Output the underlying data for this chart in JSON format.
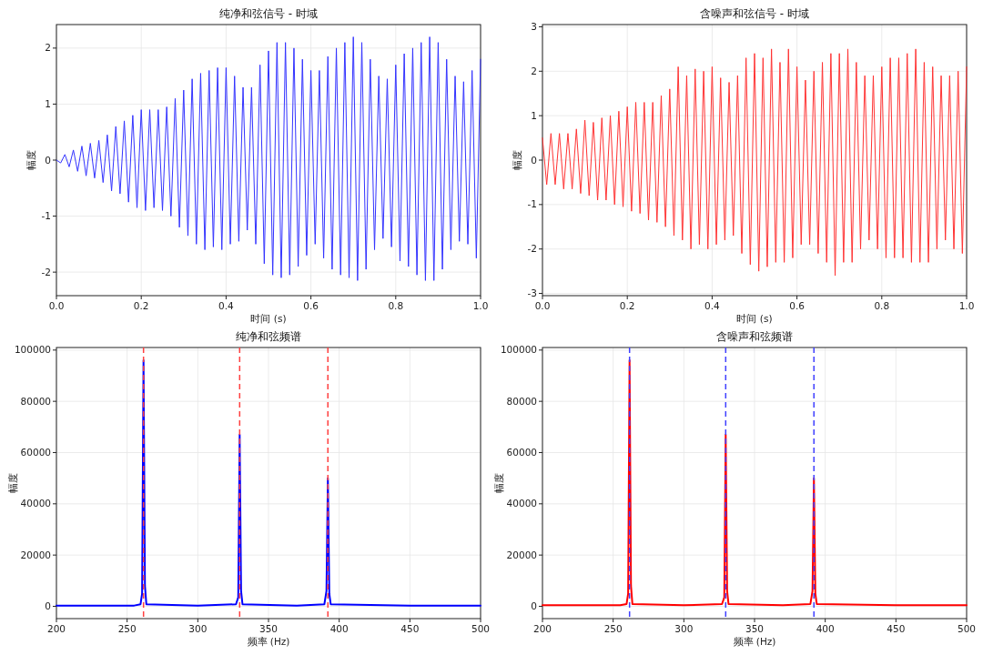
{
  "chart_data": [
    {
      "type": "line",
      "title": "纯净和弦信号 - 时域",
      "xlabel": "时间 (s)",
      "ylabel": "幅度",
      "xlim": [
        0,
        1
      ],
      "xticks": [
        {
          "value": 0,
          "label": "0.0"
        },
        {
          "value": 0.2,
          "label": "0.2"
        },
        {
          "value": 0.4,
          "label": "0.4"
        },
        {
          "value": 0.6,
          "label": "0.6"
        },
        {
          "value": 0.8,
          "label": "0.8"
        },
        {
          "value": 1,
          "label": "1.0"
        }
      ],
      "ylim": [
        -2.42,
        2.42
      ],
      "yticks": [
        -2,
        -1,
        0,
        1,
        2
      ],
      "grid": true,
      "series": [
        {
          "color": "#3333ff",
          "x": [
            0,
            0.01,
            0.02,
            0.03,
            0.04,
            0.05,
            0.06,
            0.07,
            0.08,
            0.09,
            0.1,
            0.11,
            0.12,
            0.13,
            0.14,
            0.15,
            0.16,
            0.17,
            0.18,
            0.19,
            0.2,
            0.21,
            0.22,
            0.23,
            0.24,
            0.25,
            0.26,
            0.27,
            0.28,
            0.29,
            0.3,
            0.31,
            0.32,
            0.33,
            0.34,
            0.35,
            0.36,
            0.37,
            0.38,
            0.39,
            0.4,
            0.41,
            0.42,
            0.43,
            0.44,
            0.45,
            0.46,
            0.47,
            0.48,
            0.49,
            0.5,
            0.51,
            0.52,
            0.53,
            0.54,
            0.55,
            0.56,
            0.57,
            0.58,
            0.59,
            0.6,
            0.61,
            0.62,
            0.63,
            0.64,
            0.65,
            0.66,
            0.67,
            0.68,
            0.69,
            0.7,
            0.71,
            0.72,
            0.73,
            0.74,
            0.75,
            0.76,
            0.77,
            0.78,
            0.79,
            0.8,
            0.81,
            0.82,
            0.83,
            0.84,
            0.85,
            0.86,
            0.87,
            0.88,
            0.89,
            0.9,
            0.91,
            0.92,
            0.93,
            0.94,
            0.95,
            0.96,
            0.97,
            0.98,
            0.99,
            1
          ],
          "values": [
            0,
            -0.05,
            0.1,
            -0.12,
            0.18,
            -0.2,
            0.25,
            -0.28,
            0.3,
            -0.32,
            0.35,
            -0.4,
            0.45,
            -0.55,
            0.6,
            -0.6,
            0.7,
            -0.75,
            0.8,
            -0.85,
            0.9,
            -0.9,
            0.9,
            -0.85,
            0.9,
            -0.9,
            0.95,
            -1.0,
            1.1,
            -1.2,
            1.25,
            -1.35,
            1.45,
            -1.5,
            1.55,
            -1.6,
            1.6,
            -1.55,
            1.65,
            -1.6,
            1.65,
            -1.5,
            1.5,
            -1.45,
            1.3,
            -1.25,
            1.3,
            -1.5,
            1.7,
            -1.85,
            1.95,
            -2.05,
            2.1,
            -2.1,
            2.1,
            -2.05,
            2.0,
            -1.9,
            1.8,
            -1.7,
            1.6,
            -1.5,
            1.6,
            -1.75,
            1.85,
            -1.95,
            2.0,
            -2.05,
            2.1,
            -2.1,
            2.2,
            -2.15,
            2.1,
            -1.95,
            1.8,
            -1.6,
            1.5,
            -1.4,
            1.45,
            -1.55,
            1.7,
            -1.8,
            1.9,
            -1.9,
            2.0,
            -2.05,
            2.1,
            -2.15,
            2.2,
            -2.15,
            2.1,
            -1.95,
            1.8,
            -1.6,
            1.5,
            -1.45,
            1.4,
            -1.5,
            1.6,
            -1.75,
            1.8
          ]
        }
      ]
    },
    {
      "type": "line",
      "title": "含噪声和弦信号 - 时域",
      "xlabel": "时间 (s)",
      "ylabel": "幅度",
      "xlim": [
        0,
        1
      ],
      "xticks": [
        {
          "value": 0,
          "label": "0.0"
        },
        {
          "value": 0.2,
          "label": "0.2"
        },
        {
          "value": 0.4,
          "label": "0.4"
        },
        {
          "value": 0.6,
          "label": "0.6"
        },
        {
          "value": 0.8,
          "label": "0.8"
        },
        {
          "value": 1,
          "label": "1.0"
        }
      ],
      "ylim": [
        -3.05,
        3.05
      ],
      "yticks": [
        -3,
        -2,
        -1,
        0,
        1,
        2,
        3
      ],
      "grid": true,
      "series": [
        {
          "color": "#ff3333",
          "x": [
            0,
            0.01,
            0.02,
            0.03,
            0.04,
            0.05,
            0.06,
            0.07,
            0.08,
            0.09,
            0.1,
            0.11,
            0.12,
            0.13,
            0.14,
            0.15,
            0.16,
            0.17,
            0.18,
            0.19,
            0.2,
            0.21,
            0.22,
            0.23,
            0.24,
            0.25,
            0.26,
            0.27,
            0.28,
            0.29,
            0.3,
            0.31,
            0.32,
            0.33,
            0.34,
            0.35,
            0.36,
            0.37,
            0.38,
            0.39,
            0.4,
            0.41,
            0.42,
            0.43,
            0.44,
            0.45,
            0.46,
            0.47,
            0.48,
            0.49,
            0.5,
            0.51,
            0.52,
            0.53,
            0.54,
            0.55,
            0.56,
            0.57,
            0.58,
            0.59,
            0.6,
            0.61,
            0.62,
            0.63,
            0.64,
            0.65,
            0.66,
            0.67,
            0.68,
            0.69,
            0.7,
            0.71,
            0.72,
            0.73,
            0.74,
            0.75,
            0.76,
            0.77,
            0.78,
            0.79,
            0.8,
            0.81,
            0.82,
            0.83,
            0.84,
            0.85,
            0.86,
            0.87,
            0.88,
            0.89,
            0.9,
            0.91,
            0.92,
            0.93,
            0.94,
            0.95,
            0.96,
            0.97,
            0.98,
            0.99,
            1
          ],
          "values": [
            0.5,
            -0.55,
            0.6,
            -0.55,
            0.6,
            -0.65,
            0.6,
            -0.65,
            0.7,
            -0.75,
            0.9,
            -0.8,
            0.85,
            -0.9,
            0.95,
            -0.9,
            1.0,
            -1.0,
            1.1,
            -1.05,
            1.2,
            -1.15,
            1.3,
            -1.2,
            1.3,
            -1.35,
            1.3,
            -1.4,
            1.45,
            -1.5,
            1.6,
            -1.7,
            2.1,
            -1.8,
            1.9,
            -2.0,
            2.05,
            -1.9,
            2.0,
            -2.0,
            2.1,
            -1.9,
            1.85,
            -1.8,
            1.75,
            -1.7,
            1.9,
            -2.1,
            2.3,
            -2.35,
            2.4,
            -2.5,
            2.3,
            -2.4,
            2.5,
            -2.3,
            2.2,
            -2.3,
            2.5,
            -2.2,
            2.1,
            -1.9,
            1.8,
            -1.9,
            2.0,
            -2.1,
            2.2,
            -2.3,
            2.4,
            -2.6,
            2.4,
            -2.3,
            2.5,
            -2.3,
            2.2,
            -2.0,
            1.9,
            -1.8,
            1.9,
            -2.0,
            2.1,
            -2.2,
            2.3,
            -2.2,
            2.3,
            -2.2,
            2.4,
            -2.3,
            2.5,
            -2.3,
            2.2,
            -2.3,
            2.1,
            -2.0,
            1.9,
            -1.8,
            1.9,
            -2.0,
            2.0,
            -2.1,
            2.1
          ]
        }
      ]
    },
    {
      "type": "line",
      "title": "纯净和弦频谱",
      "xlabel": "频率 (Hz)",
      "ylabel": "幅度",
      "xlim": [
        200,
        500
      ],
      "xticks": [
        200,
        250,
        300,
        350,
        400,
        450,
        500
      ],
      "ylim": [
        -4800,
        101000
      ],
      "yticks": [
        0,
        20000,
        40000,
        60000,
        80000,
        100000
      ],
      "grid": true,
      "series": [
        {
          "color": "#0000ff",
          "x": [
            200,
            255,
            259.5,
            260.6,
            261.6,
            262.6,
            263.6,
            300,
            327,
            328.6,
            329.6,
            330.6,
            331.6,
            370,
            389.5,
            391,
            392,
            393,
            394,
            450,
            500
          ],
          "values": [
            300,
            300,
            800,
            5000,
            96000,
            8000,
            800,
            300,
            800,
            3500,
            67000,
            6000,
            800,
            300,
            800,
            6000,
            50000,
            5000,
            800,
            300,
            300
          ]
        }
      ],
      "ref_lines": [
        {
          "axis": "x",
          "value": 261.6,
          "color": "#ff4040",
          "line_style": "dashed"
        },
        {
          "axis": "x",
          "value": 329.6,
          "color": "#ff4040",
          "line_style": "dashed"
        },
        {
          "axis": "x",
          "value": 392,
          "color": "#ff4040",
          "line_style": "dashed"
        }
      ]
    },
    {
      "type": "line",
      "title": "含噪声和弦频谱",
      "xlabel": "频率 (Hz)",
      "ylabel": "幅度",
      "xlim": [
        200,
        500
      ],
      "xticks": [
        200,
        250,
        300,
        350,
        400,
        450,
        500
      ],
      "ylim": [
        -4800,
        101000
      ],
      "yticks": [
        0,
        20000,
        40000,
        60000,
        80000,
        100000
      ],
      "grid": true,
      "series": [
        {
          "color": "#ff0000",
          "x": [
            200,
            255,
            259.5,
            260.6,
            261.6,
            262.6,
            263.6,
            300,
            327,
            328.6,
            329.6,
            330.6,
            331.6,
            370,
            389.5,
            391,
            392,
            393,
            394,
            450,
            500
          ],
          "values": [
            400,
            400,
            900,
            5000,
            96000,
            8000,
            900,
            400,
            900,
            3500,
            67000,
            6000,
            900,
            400,
            900,
            6000,
            50000,
            5000,
            900,
            400,
            400
          ]
        }
      ],
      "ref_lines": [
        {
          "axis": "x",
          "value": 261.6,
          "color": "#4040ff",
          "line_style": "dashed"
        },
        {
          "axis": "x",
          "value": 329.6,
          "color": "#4040ff",
          "line_style": "dashed"
        },
        {
          "axis": "x",
          "value": 392,
          "color": "#4040ff",
          "line_style": "dashed"
        }
      ]
    }
  ]
}
